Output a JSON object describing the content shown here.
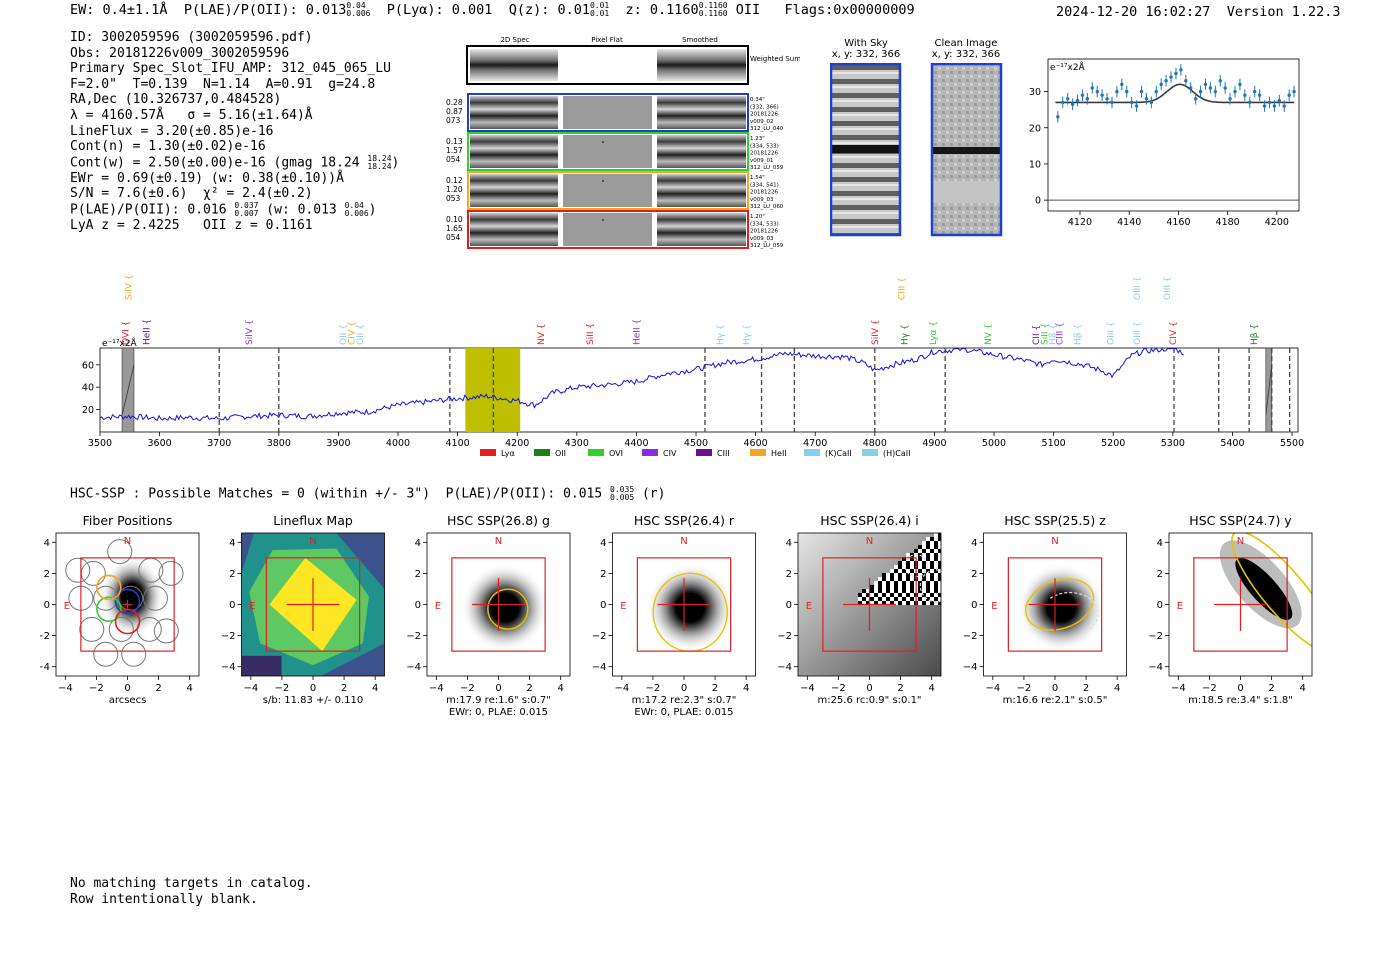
{
  "header": {
    "ew": "EW: 0.4±1.1Å",
    "plae_label": "P(LAE)/P(OII):",
    "plae_value": "0.013",
    "plae_hi": "0.04",
    "plae_lo": "0.006",
    "plya": "P(Lyα): 0.001",
    "qz_label": "Q(z):",
    "qz_value": "0.01",
    "qz_hi": "0.01",
    "qz_lo": "0.01",
    "z_label": "z:",
    "z_value": "0.1160",
    "z_hi": "0.1160",
    "z_lo": "0.1160",
    "z_line": "OII",
    "flags": "Flags:0x00000009",
    "datetime": "2024-12-20 16:02:27",
    "version": "Version 1.22.3"
  },
  "info": {
    "id": "ID: 3002059596 (3002059596.pdf)",
    "obs": "Obs: 20181226v009_3002059596",
    "primary": "Primary Spec_Slot_IFU_AMP: 312_045_065_LU",
    "params": "F=2.0\"  T=0.139  N=1.14  A=0.91  g=24.8",
    "radec": "RA,Dec (10.326737,0.484528)",
    "lambda": "λ = 4160.57Å   σ = 5.16(±1.64)Å",
    "lineflux": "LineFlux = 3.20(±0.85)e-16",
    "contn": "Cont(n) = 1.30(±0.02)e-16",
    "contw": "Cont(w) = 2.50(±0.00)e-16 (gmag 18.24",
    "contw_hi": "18.24",
    "contw_lo": "18.24",
    "ewr": "EWr = 0.69(±0.19) (w: 0.38(±0.10))Å",
    "sn": "S/N = 7.6(±0.6)  χ² = 2.4(±0.2)",
    "plae": "P(LAE)/P(OII): 0.016",
    "plae_hi": "0.037",
    "plae_lo": "0.007",
    "plae_w": "(w: 0.013",
    "plae_w_hi": "0.04",
    "plae_w_lo": "0.006",
    "lyaz": "LyA z = 2.4225   OII z = 0.1161"
  },
  "spec2d": {
    "headers": [
      "2D Spec",
      "Pixel Flat",
      "Smoothed"
    ],
    "weighted_label": "Weighted Sum",
    "rows": [
      {
        "left": [
          "0.28",
          "0.87",
          "073"
        ],
        "right": [
          "0.34\"",
          "(332, 366)",
          "20181226",
          "v009_02",
          "312_LU_040"
        ],
        "color": "#1f3fd1"
      },
      {
        "left": [
          "0.13",
          "1.57",
          "054"
        ],
        "right": [
          "1.23\"",
          "(334, 533)",
          "20181226",
          "v009_01",
          "312_LU_059"
        ],
        "color": "#2fd12f"
      },
      {
        "left": [
          "0.12",
          "1.20",
          "053"
        ],
        "right": [
          "1.54\"",
          "(334, 541)",
          "20181226",
          "v009_03",
          "312_LU_060"
        ],
        "color": "#f5a623"
      },
      {
        "left": [
          "0.10",
          "1.65",
          "054"
        ],
        "right": [
          "1.20\"",
          "(334, 533)",
          "20181226",
          "v009_03",
          "312_LU_059"
        ],
        "color": "#e02020"
      }
    ]
  },
  "with_sky": {
    "title": "With Sky",
    "coords": "x, y: 332, 366"
  },
  "clean_image": {
    "title": "Clean Image",
    "coords": "x, y: 332, 366"
  },
  "chart_data": [
    {
      "type": "scatter",
      "name_id": "line-fit",
      "title": "",
      "unit_label": "e⁻¹⁷x2Å",
      "xlim": [
        4107,
        4209
      ],
      "ylim": [
        -3,
        39
      ],
      "xticks": [
        4120,
        4140,
        4160,
        4180,
        4200
      ],
      "yticks": [
        0,
        10,
        20,
        30
      ],
      "points": [
        [
          4111,
          23
        ],
        [
          4113,
          27
        ],
        [
          4115,
          28
        ],
        [
          4117,
          26.5
        ],
        [
          4119,
          27.5
        ],
        [
          4121,
          29
        ],
        [
          4123,
          28
        ],
        [
          4125,
          31
        ],
        [
          4127,
          30
        ],
        [
          4129,
          29
        ],
        [
          4131,
          28
        ],
        [
          4133,
          27
        ],
        [
          4135,
          30
        ],
        [
          4137,
          32
        ],
        [
          4139,
          30
        ],
        [
          4141,
          27
        ],
        [
          4143,
          26
        ],
        [
          4145,
          30
        ],
        [
          4147,
          28
        ],
        [
          4149,
          27
        ],
        [
          4151,
          30
        ],
        [
          4153,
          32
        ],
        [
          4155,
          33
        ],
        [
          4157,
          34
        ],
        [
          4159,
          35
        ],
        [
          4161,
          36
        ],
        [
          4163,
          33
        ],
        [
          4165,
          31
        ],
        [
          4167,
          28
        ],
        [
          4169,
          30
        ],
        [
          4171,
          32
        ],
        [
          4173,
          31
        ],
        [
          4175,
          30
        ],
        [
          4177,
          33
        ],
        [
          4179,
          31
        ],
        [
          4181,
          28
        ],
        [
          4183,
          30
        ],
        [
          4185,
          32
        ],
        [
          4187,
          29
        ],
        [
          4189,
          27
        ],
        [
          4191,
          30
        ],
        [
          4193,
          29
        ],
        [
          4195,
          26
        ],
        [
          4197,
          27
        ],
        [
          4199,
          26
        ],
        [
          4201,
          27.5
        ],
        [
          4203,
          26
        ],
        [
          4205,
          29
        ],
        [
          4207,
          30
        ]
      ],
      "errors": 1.6,
      "fit": {
        "baseline": 27,
        "amp": 5,
        "center": 4160.6,
        "sigma": 5.2
      }
    },
    {
      "type": "line",
      "name_id": "full-spectrum",
      "title": "",
      "unit_label": "e⁻¹⁷x2Å",
      "xlim": [
        3500,
        5510
      ],
      "ylim": [
        0,
        75
      ],
      "xticks": [
        3500,
        3600,
        3700,
        3800,
        3900,
        4000,
        4100,
        4200,
        4300,
        4400,
        4500,
        4600,
        4700,
        4800,
        4900,
        5000,
        5100,
        5200,
        5300,
        5400,
        5500
      ],
      "yticks": [
        20,
        40,
        60
      ],
      "anchors": [
        [
          3500,
          13
        ],
        [
          3550,
          14
        ],
        [
          3600,
          12
        ],
        [
          3650,
          13
        ],
        [
          3700,
          12
        ],
        [
          3750,
          14
        ],
        [
          3800,
          15
        ],
        [
          3850,
          14
        ],
        [
          3900,
          17
        ],
        [
          3950,
          18
        ],
        [
          4000,
          24
        ],
        [
          4050,
          27
        ],
        [
          4100,
          30
        ],
        [
          4150,
          32
        ],
        [
          4200,
          28
        ],
        [
          4230,
          24
        ],
        [
          4260,
          35
        ],
        [
          4300,
          40
        ],
        [
          4350,
          42
        ],
        [
          4400,
          45
        ],
        [
          4450,
          52
        ],
        [
          4500,
          56
        ],
        [
          4550,
          62
        ],
        [
          4600,
          65
        ],
        [
          4650,
          70
        ],
        [
          4700,
          68
        ],
        [
          4750,
          67
        ],
        [
          4780,
          62
        ],
        [
          4800,
          55
        ],
        [
          4830,
          60
        ],
        [
          4870,
          65
        ],
        [
          4900,
          72
        ],
        [
          4950,
          74
        ],
        [
          5000,
          69
        ],
        [
          5050,
          64
        ],
        [
          5080,
          60
        ],
        [
          5100,
          65
        ],
        [
          5150,
          60
        ],
        [
          5180,
          55
        ],
        [
          5200,
          50
        ],
        [
          5230,
          68
        ],
        [
          5250,
          72
        ],
        [
          5300,
          75
        ],
        [
          5320,
          70
        ]
      ],
      "gray_bands": [
        [
          3537,
          3557
        ],
        [
          5456,
          5466
        ]
      ],
      "highlight_band": [
        4113,
        4205
      ],
      "dashed_lines": [
        3700,
        3800,
        4087,
        4160,
        4515,
        4610,
        4665,
        4800,
        4918,
        5302,
        5377,
        5428,
        5466,
        5496
      ],
      "annotations": [
        {
          "label": "OVI",
          "x": 3543,
          "color": "#e02020",
          "row": 1
        },
        {
          "label": "SiIV",
          "x": 3548,
          "color": "#f5a623",
          "row": 0
        },
        {
          "label": "HeII",
          "x": 3578,
          "color": "#6a0d91",
          "row": 1
        },
        {
          "label": "SiIV",
          "x": 3750,
          "color": "#8a2be2",
          "row": 1
        },
        {
          "label": "OII",
          "x": 3908,
          "color": "#87ceeb",
          "row": 1
        },
        {
          "label": "CIV",
          "x": 3922,
          "color": "#f5a623",
          "row": 1
        },
        {
          "label": "OII",
          "x": 3936,
          "color": "#87ceeb",
          "row": 1
        },
        {
          "label": "NV",
          "x": 4240,
          "color": "#e02020",
          "row": 1
        },
        {
          "label": "SiII",
          "x": 4322,
          "color": "#e02020",
          "row": 1
        },
        {
          "label": "HeII",
          "x": 4400,
          "color": "#8a2be2",
          "row": 1
        },
        {
          "label": "Hγ",
          "x": 4540,
          "color": "#87ceeb",
          "row": 1
        },
        {
          "label": "Hγ",
          "x": 4585,
          "color": "#87ceeb",
          "row": 1
        },
        {
          "label": "SiIV",
          "x": 4800,
          "color": "#e02020",
          "row": 1
        },
        {
          "label": "CIII",
          "x": 4845,
          "color": "#f5a623",
          "row": 0
        },
        {
          "label": "Hγ",
          "x": 4850,
          "color": "#1b7f1b",
          "row": 1
        },
        {
          "label": "Lyα",
          "x": 4898,
          "color": "#2fd12f",
          "row": 1
        },
        {
          "label": "NV",
          "x": 4990,
          "color": "#2fd12f",
          "row": 1
        },
        {
          "label": "CII",
          "x": 5070,
          "color": "#6a0d91",
          "row": 1
        },
        {
          "label": "SiII",
          "x": 5085,
          "color": "#2fd12f",
          "row": 1
        },
        {
          "label": "Hβ",
          "x": 5098,
          "color": "#87ceeb",
          "row": 1
        },
        {
          "label": "CIII",
          "x": 5110,
          "color": "#8a2be2",
          "row": 1
        },
        {
          "label": "Hβ",
          "x": 5140,
          "color": "#87ceeb",
          "row": 1
        },
        {
          "label": "OIII",
          "x": 5195,
          "color": "#87ceeb",
          "row": 1
        },
        {
          "label": "OIII",
          "x": 5240,
          "color": "#87ceeb",
          "row": 0
        },
        {
          "label": "OIII",
          "x": 5240,
          "color": "#87ceeb",
          "row": 1
        },
        {
          "label": "OIII",
          "x": 5290,
          "color": "#87ceeb",
          "row": 0
        },
        {
          "label": "CIV",
          "x": 5300,
          "color": "#e02020",
          "row": 1
        },
        {
          "label": "Hβ",
          "x": 5436,
          "color": "#1b7f1b",
          "row": 1
        }
      ],
      "legend": [
        {
          "label": "Lyα",
          "color": "#e02020"
        },
        {
          "label": "OII",
          "color": "#1b7f1b"
        },
        {
          "label": "OVI",
          "color": "#2fd12f"
        },
        {
          "label": "CIV",
          "color": "#8a2be2"
        },
        {
          "label": "CIII",
          "color": "#6a0d91"
        },
        {
          "label": "HeII",
          "color": "#f5a623"
        },
        {
          "label": "(K)CaII",
          "color": "#87ceeb"
        },
        {
          "label": "(H)CaII",
          "color": "#87ceeb"
        }
      ]
    }
  ],
  "cutouts_header": {
    "text": "HSC-SSP : Possible Matches = 0 (within +/- 3\")  P(LAE)/P(OII): 0.015",
    "hi": "0.035",
    "lo": "0.005",
    "suffix": "(r)"
  },
  "cutouts": [
    {
      "title": "Fiber Positions",
      "caption": [
        "arcsecs"
      ],
      "kind": "fiber"
    },
    {
      "title": "Lineflux Map",
      "caption": [
        "s/b: 11.83 +/- 0.110"
      ],
      "kind": "lineflux"
    },
    {
      "title": "HSC SSP(26.8) g",
      "caption": [
        "m:17.9  re:1.6\"  s:0.7\"",
        "EWr: 0, PLAE: 0.015"
      ],
      "kind": "g"
    },
    {
      "title": "HSC SSP(26.4) r",
      "caption": [
        "m:17.2  re:2.3\"  s:0.7\"",
        "EWr: 0, PLAE: 0.015"
      ],
      "kind": "r"
    },
    {
      "title": "HSC SSP(26.4) i",
      "caption": [
        "m:25.6 rc:0.9\"  s:0.1\""
      ],
      "kind": "i"
    },
    {
      "title": "HSC SSP(25.5) z",
      "caption": [
        "m:16.6  re:2.1\"  s:0.5\""
      ],
      "kind": "z"
    },
    {
      "title": "HSC SSP(24.7) y",
      "caption": [
        "m:18.5  re:3.4\"  s:1.8\""
      ],
      "kind": "y"
    }
  ],
  "cutout_axis": {
    "ticks": [
      -4,
      -2,
      0,
      2,
      4
    ],
    "north": "N",
    "east": "E"
  },
  "footer": {
    "line1": "No matching targets in catalog.",
    "line2": "Row intentionally blank."
  }
}
